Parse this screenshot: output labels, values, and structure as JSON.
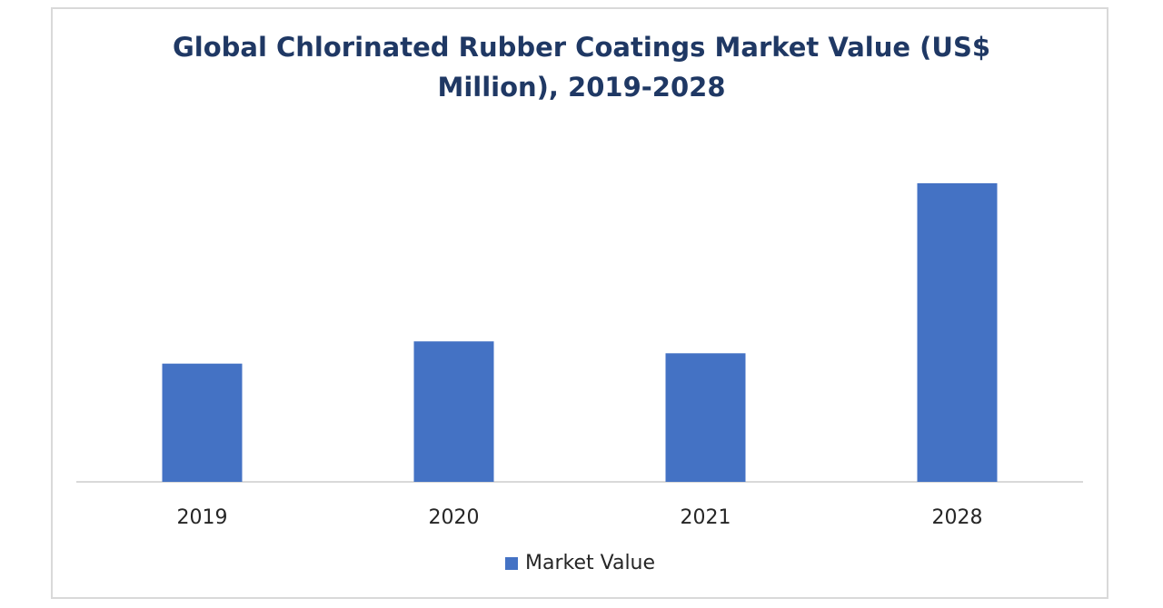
{
  "chart_data": {
    "type": "bar",
    "title_lines": [
      "Global Chlorinated Rubber Coatings Market Value (US$",
      "Million), 2019-2028"
    ],
    "categories": [
      "2019",
      "2020",
      "2021",
      "2028"
    ],
    "series": [
      {
        "name": "Market Value",
        "values": [
          40,
          47.5,
          43.5,
          101
        ]
      }
    ],
    "ylim": [
      0,
      120
    ],
    "grid": false,
    "legend_position": "bottom",
    "colors": {
      "bar": "#4472c4",
      "axis": "#d9d9d9",
      "title": "#1f3864"
    }
  }
}
